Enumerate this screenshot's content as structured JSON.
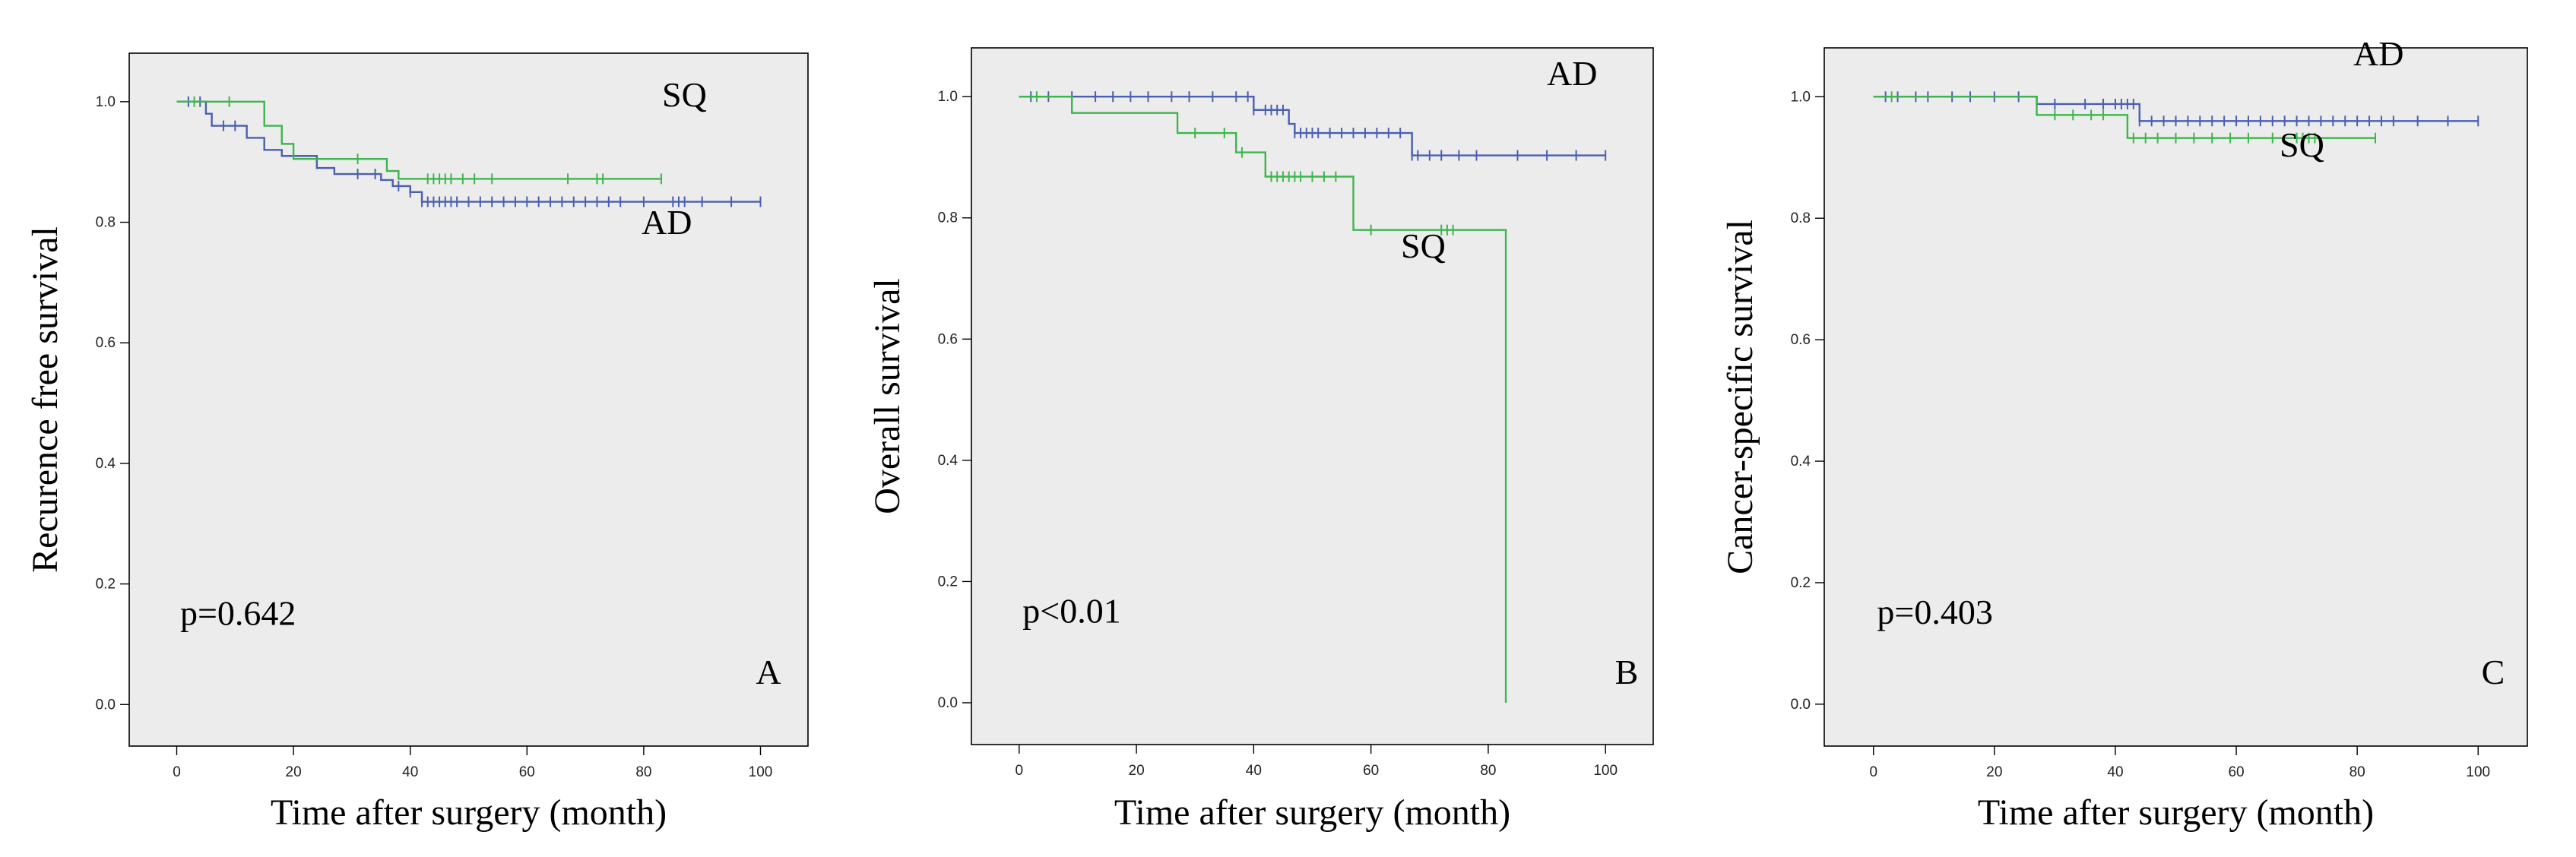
{
  "chart_data": [
    {
      "type": "line",
      "step": true,
      "panel": "A",
      "xlabel": "Time after surgery (month)",
      "ylabel": "Recurence free survival",
      "pvalue": "p=0.642",
      "xlim": [
        0,
        100
      ],
      "ylim": [
        0,
        1
      ],
      "xticks": [
        "0",
        "20",
        "40",
        "60",
        "80",
        "100"
      ],
      "yticks": [
        "0.0",
        "0.2",
        "0.4",
        "0.6",
        "0.8",
        "1.0"
      ],
      "background": "#ececec",
      "series": [
        {
          "name": "AD",
          "color": "#4a5fb0",
          "x": [
            0,
            5,
            6,
            12,
            15,
            18,
            24,
            27,
            35,
            37,
            40,
            42,
            100
          ],
          "y": [
            1.0,
            0.98,
            0.96,
            0.94,
            0.92,
            0.91,
            0.89,
            0.88,
            0.87,
            0.86,
            0.85,
            0.834,
            0.834
          ],
          "censors": [
            2,
            4,
            8,
            10,
            31,
            34,
            38,
            40,
            42,
            43,
            44,
            45,
            46,
            47,
            48,
            50,
            52,
            54,
            56,
            58,
            60,
            62,
            64,
            66,
            68,
            70,
            72,
            74,
            76,
            80,
            85,
            86,
            87,
            90,
            95,
            100
          ]
        },
        {
          "name": "SQ",
          "color": "#3db64d",
          "x": [
            0,
            15,
            18,
            20,
            36,
            38,
            83
          ],
          "y": [
            1.0,
            0.96,
            0.93,
            0.905,
            0.885,
            0.872,
            0.872
          ],
          "censors": [
            3,
            9,
            31,
            43,
            44,
            45,
            46,
            47,
            49,
            51,
            54,
            67,
            72,
            73,
            83
          ]
        }
      ]
    },
    {
      "type": "line",
      "step": true,
      "panel": "B",
      "xlabel": "Time after surgery (month)",
      "ylabel": "Overall survival",
      "pvalue": "p<0.01",
      "xlim": [
        0,
        100
      ],
      "ylim": [
        0,
        1
      ],
      "xticks": [
        "0",
        "20",
        "40",
        "60",
        "80",
        "100"
      ],
      "yticks": [
        "0.0",
        "0.2",
        "0.4",
        "0.6",
        "0.8",
        "1.0"
      ],
      "background": "#ececec",
      "series": [
        {
          "name": "AD",
          "color": "#4a5fb0",
          "x": [
            0,
            40,
            46,
            47,
            67,
            100
          ],
          "y": [
            1.0,
            0.978,
            0.955,
            0.94,
            0.903,
            0.903
          ],
          "censors": [
            2,
            5,
            9,
            13,
            16,
            19,
            22,
            26,
            29,
            33,
            37,
            39,
            40,
            42,
            43,
            44,
            45,
            47,
            48,
            49,
            50,
            51,
            53,
            55,
            57,
            59,
            61,
            63,
            65,
            67,
            68,
            70,
            72,
            75,
            78,
            85,
            90,
            95,
            100
          ]
        },
        {
          "name": "SQ",
          "color": "#3db64d",
          "x": [
            0,
            9,
            27,
            37,
            42,
            57,
            83,
            83
          ],
          "y": [
            1.0,
            0.973,
            0.94,
            0.908,
            0.868,
            0.78,
            0.78,
            0.0
          ],
          "censors": [
            3,
            30,
            35,
            38,
            43,
            44,
            45,
            46,
            47,
            48,
            50,
            52,
            54,
            60,
            72,
            73,
            74
          ]
        }
      ]
    },
    {
      "type": "line",
      "step": true,
      "panel": "C",
      "xlabel": "Time after surgery (month)",
      "ylabel": "Cancer-specific survival",
      "pvalue": "p=0.403",
      "xlim": [
        0,
        100
      ],
      "ylim": [
        0,
        1
      ],
      "xticks": [
        "0",
        "20",
        "40",
        "60",
        "80",
        "100"
      ],
      "yticks": [
        "0.0",
        "0.2",
        "0.4",
        "0.6",
        "0.8",
        "1.0"
      ],
      "background": "#ececec",
      "series": [
        {
          "name": "AD",
          "color": "#4a5fb0",
          "x": [
            0,
            27,
            44,
            100
          ],
          "y": [
            1.0,
            0.988,
            0.96,
            0.96
          ],
          "censors": [
            2,
            4,
            7,
            9,
            13,
            16,
            20,
            24,
            30,
            35,
            38,
            40,
            41,
            42,
            43,
            44,
            46,
            48,
            50,
            52,
            54,
            56,
            58,
            60,
            62,
            64,
            66,
            68,
            70,
            72,
            74,
            76,
            78,
            80,
            82,
            84,
            86,
            90,
            95,
            100
          ]
        },
        {
          "name": "SQ",
          "color": "#3db64d",
          "x": [
            0,
            27,
            42,
            83
          ],
          "y": [
            1.0,
            0.97,
            0.932,
            0.932
          ],
          "censors": [
            3,
            30,
            33,
            36,
            38,
            43,
            45,
            47,
            50,
            53,
            56,
            59,
            62,
            66,
            70,
            71,
            72,
            73,
            83
          ]
        }
      ]
    }
  ]
}
